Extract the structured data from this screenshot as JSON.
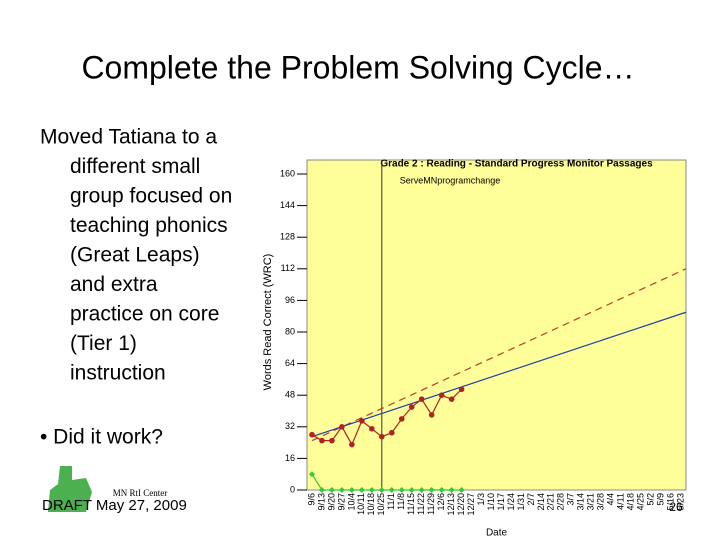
{
  "slide_title": "Complete the Problem Solving Cycle…",
  "body_lines": [
    "Moved Tatiana to a",
    "different small",
    "group focused on",
    "teaching phonics",
    "(Great Leaps)",
    "and extra",
    "practice on core",
    "(Tier 1)",
    "instruction"
  ],
  "bullet": "• Did it work?",
  "logo_text": "MN RtI Center",
  "footer": "DRAFT May 27, 2009",
  "page_number": "26",
  "chart_data": {
    "type": "line",
    "title": "Grade 2 : Reading - Standard Progress Monitor Passages",
    "y_label": "Words Read Correct (WRC)",
    "x_label": "Date",
    "categories": [
      "9/6",
      "9/13",
      "9/20",
      "9/27",
      "10/4",
      "10/11",
      "10/18",
      "10/25",
      "11/1",
      "11/8",
      "11/15",
      "11/22",
      "11/29",
      "12/6",
      "12/13",
      "12/20",
      "12/27",
      "1/3",
      "1/10",
      "1/17",
      "1/24",
      "1/31",
      "2/7",
      "2/14",
      "2/21",
      "2/28",
      "3/7",
      "3/14",
      "3/21",
      "3/28",
      "4/4",
      "4/11",
      "4/18",
      "4/25",
      "5/2",
      "5/9",
      "5/16",
      "5/23"
    ],
    "series": [
      {
        "color": "#b22222",
        "values": [
          28,
          25,
          25,
          32,
          23,
          35,
          31,
          27,
          29,
          36,
          42,
          46,
          38,
          48,
          46,
          51,
          null,
          null,
          null,
          null,
          null,
          null,
          null,
          null,
          null,
          null,
          null,
          null,
          null,
          null,
          null,
          null,
          null,
          null,
          null,
          null,
          null,
          null
        ]
      },
      {
        "color": "#33cc33",
        "values": [
          8,
          0,
          0,
          0,
          0,
          0,
          0,
          0,
          0,
          0,
          0,
          0,
          0,
          0,
          0,
          0,
          null,
          null,
          null,
          null,
          null,
          null,
          null,
          null,
          null,
          null,
          null,
          null,
          null,
          null,
          null,
          null,
          null,
          null,
          null,
          null,
          null,
          null
        ]
      }
    ],
    "trend_lines": [
      {
        "color": "#c0392b",
        "dashed": true,
        "values": [
          25,
          112
        ]
      },
      {
        "color": "#1f3fa8",
        "dashed": false,
        "values": [
          27,
          90
        ]
      }
    ],
    "phase_change": {
      "label": "ServeMNprogramchange",
      "at": "10/25"
    },
    "ylim": [
      0,
      160
    ],
    "yticks": [
      0,
      16,
      32,
      48,
      64,
      80,
      96,
      112,
      128,
      144,
      160
    ],
    "plot_color": "#ffff99"
  }
}
